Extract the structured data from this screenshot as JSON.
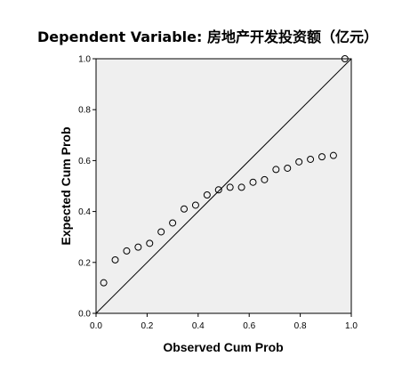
{
  "chart_data": {
    "type": "scatter",
    "title": "Dependent Variable: 房地产开发投资额（亿元）",
    "xlabel": "Observed Cum Prob",
    "ylabel": "Expected Cum Prob",
    "xlim": [
      0.0,
      1.0
    ],
    "ylim": [
      0.0,
      1.0
    ],
    "xticks": [
      "0.0",
      "0.2",
      "0.4",
      "0.6",
      "0.8",
      "1.0"
    ],
    "yticks": [
      "0.0",
      "0.2",
      "0.4",
      "0.6",
      "0.8",
      "1.0"
    ],
    "reference_line": [
      [
        0.0,
        0.0
      ],
      [
        1.0,
        1.0
      ]
    ],
    "grid": false,
    "plot_background": "#efefef",
    "points": [
      {
        "x": 0.03,
        "y": 0.12
      },
      {
        "x": 0.075,
        "y": 0.21
      },
      {
        "x": 0.12,
        "y": 0.245
      },
      {
        "x": 0.165,
        "y": 0.26
      },
      {
        "x": 0.21,
        "y": 0.275
      },
      {
        "x": 0.255,
        "y": 0.32
      },
      {
        "x": 0.3,
        "y": 0.355
      },
      {
        "x": 0.345,
        "y": 0.41
      },
      {
        "x": 0.39,
        "y": 0.425
      },
      {
        "x": 0.435,
        "y": 0.465
      },
      {
        "x": 0.48,
        "y": 0.485
      },
      {
        "x": 0.525,
        "y": 0.495
      },
      {
        "x": 0.57,
        "y": 0.495
      },
      {
        "x": 0.615,
        "y": 0.515
      },
      {
        "x": 0.66,
        "y": 0.525
      },
      {
        "x": 0.705,
        "y": 0.565
      },
      {
        "x": 0.75,
        "y": 0.57
      },
      {
        "x": 0.795,
        "y": 0.595
      },
      {
        "x": 0.84,
        "y": 0.605
      },
      {
        "x": 0.885,
        "y": 0.615
      },
      {
        "x": 0.93,
        "y": 0.62
      },
      {
        "x": 0.975,
        "y": 1.0
      }
    ]
  }
}
